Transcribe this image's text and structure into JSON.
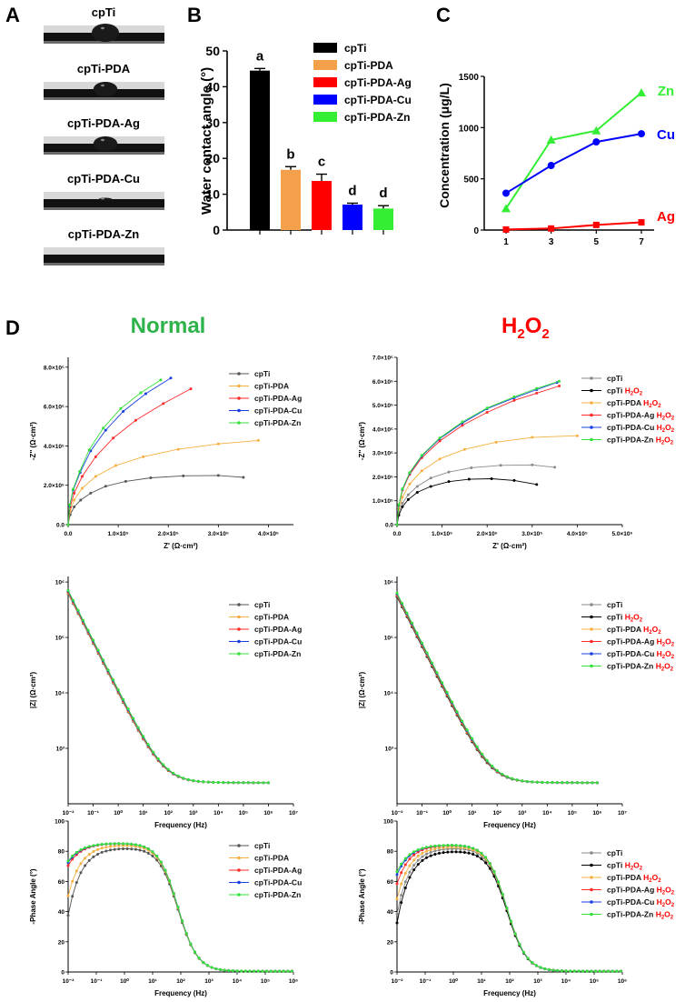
{
  "figure": {
    "panel_labels": [
      "A",
      "B",
      "C",
      "D"
    ],
    "heading_normal": "Normal",
    "heading_h2o2_main": "H",
    "heading_h2o2_sub1": "2",
    "heading_h2o2_mid": "O",
    "heading_h2o2_sub2": "2",
    "h2o2_suffix_main": "H",
    "h2o2_suffix_sub": "2",
    "h2o2_suffix_o": "O",
    "colors": {
      "cpTi": "#000000",
      "cpTi_PDA": "#f5a04a",
      "cpTi_PDA_Ag": "#ff0000",
      "cpTi_PDA_Cu": "#0000ff",
      "cpTi_PDA_Zn": "#33ee33",
      "eis_cpTi": "#555555",
      "eis_cpTi_H2O2": "#000000",
      "eis_PDA": "#f5b041",
      "eis_Ag": "#ff2a2a",
      "eis_Cu": "#1a3fe0",
      "eis_Zn": "#36e13a",
      "h2o2_red": "#ff0000",
      "normal_green": "#2db34a"
    }
  },
  "panelA": {
    "samples": [
      "cpTi",
      "cpTi-PDA",
      "cpTi-PDA-Ag",
      "cpTi-PDA-Cu",
      "cpTi-PDA-Zn"
    ]
  },
  "chart_data": [
    {
      "id": "B",
      "type": "bar",
      "categories": [
        "cpTi",
        "cpTi-PDA",
        "cpTi-PDA-Ag",
        "cpTi-PDA-Cu",
        "cpTi-PDA-Zn"
      ],
      "values": [
        44.5,
        16.8,
        13.7,
        7.1,
        6.0
      ],
      "errors": [
        0.6,
        0.9,
        1.9,
        0.4,
        0.8
      ],
      "letters": [
        "a",
        "b",
        "c",
        "d",
        "d"
      ],
      "ylabel": "Water contact angle (°)",
      "ylim": [
        0,
        50
      ],
      "yticks": [
        "0",
        "10",
        "20",
        "30",
        "40",
        "50"
      ],
      "legend": [
        "cpTi",
        "cpTi-PDA",
        "cpTi-PDA-Ag",
        "cpTi-PDA-Cu",
        "cpTi-PDA-Zn"
      ]
    },
    {
      "id": "C",
      "type": "line",
      "x": [
        1,
        3,
        5,
        7
      ],
      "xticks": [
        "1",
        "3",
        "5",
        "7"
      ],
      "ylabel": "Concentration (μg/L)",
      "ylim": [
        0,
        1500
      ],
      "yticks": [
        "0",
        "500",
        "1000",
        "1500"
      ],
      "series": [
        {
          "name": "Zn",
          "values": [
            210,
            880,
            970,
            1340
          ]
        },
        {
          "name": "Cu",
          "values": [
            360,
            630,
            860,
            940
          ]
        },
        {
          "name": "Ag",
          "values": [
            5,
            15,
            50,
            75
          ]
        }
      ]
    },
    {
      "id": "D-nyquist-normal",
      "type": "line",
      "xlabel": "Z' (Ω·cm²)",
      "ylabel": "-Z'' (Ω·cm²)",
      "xlim": [
        0,
        450000
      ],
      "ylim": [
        0,
        850000
      ],
      "xticks": [
        "0.0",
        "1.0×10⁵",
        "2.0×10⁵",
        "3.0×10⁵",
        "4.0×10⁵"
      ],
      "yticks": [
        "0.0",
        "2.0×10⁵",
        "4.0×10⁵",
        "6.0×10⁵",
        "8.0×10⁵"
      ],
      "legend": [
        "cpTi",
        "cpTi-PDA",
        "cpTi-PDA-Ag",
        "cpTi-PDA-Cu",
        "cpTi-PDA-Zn"
      ],
      "series": [
        {
          "name": "cpTi",
          "values": [
            [
              0,
              0
            ],
            [
              4000,
              50000
            ],
            [
              12000,
              90000
            ],
            [
              25000,
              125000
            ],
            [
              45000,
              160000
            ],
            [
              75000,
              195000
            ],
            [
              115000,
              220000
            ],
            [
              165000,
              238000
            ],
            [
              230000,
              248000
            ],
            [
              300000,
              250000
            ],
            [
              350000,
              240000
            ]
          ]
        },
        {
          "name": "cpTi-PDA",
          "values": [
            [
              0,
              0
            ],
            [
              4000,
              70000
            ],
            [
              12000,
              125000
            ],
            [
              28000,
              185000
            ],
            [
              55000,
              245000
            ],
            [
              95000,
              300000
            ],
            [
              150000,
              345000
            ],
            [
              220000,
              383000
            ],
            [
              300000,
              410000
            ],
            [
              380000,
              428000
            ]
          ]
        },
        {
          "name": "cpTi-PDA-Ag",
          "values": [
            [
              0,
              0
            ],
            [
              4000,
              90000
            ],
            [
              12000,
              160000
            ],
            [
              28000,
              245000
            ],
            [
              55000,
              345000
            ],
            [
              90000,
              440000
            ],
            [
              135000,
              530000
            ],
            [
              190000,
              615000
            ],
            [
              245000,
              690000
            ]
          ]
        },
        {
          "name": "cpTi-PDA-Cu",
          "values": [
            [
              0,
              0
            ],
            [
              3000,
              95000
            ],
            [
              10000,
              175000
            ],
            [
              24000,
              265000
            ],
            [
              45000,
              375000
            ],
            [
              75000,
              480000
            ],
            [
              110000,
              575000
            ],
            [
              155000,
              665000
            ],
            [
              205000,
              745000
            ]
          ]
        },
        {
          "name": "cpTi-PDA-Zn",
          "values": [
            [
              0,
              0
            ],
            [
              3000,
              100000
            ],
            [
              10000,
              180000
            ],
            [
              23000,
              270000
            ],
            [
              42000,
              380000
            ],
            [
              70000,
              490000
            ],
            [
              105000,
              590000
            ],
            [
              145000,
              670000
            ],
            [
              185000,
              735000
            ]
          ]
        }
      ]
    },
    {
      "id": "D-nyquist-h2o2",
      "type": "line",
      "xlabel": "Z' (Ω·cm²)",
      "ylabel": "-Z'' (Ω·cm²)",
      "xlim": [
        0,
        500000
      ],
      "ylim": [
        0,
        700000
      ],
      "xticks": [
        "0.0",
        "1.0×10⁵",
        "2.0×10⁵",
        "3.0×10⁵",
        "4.0×10⁵",
        "5.0×10⁵"
      ],
      "yticks": [
        "0.0",
        "1.0×10⁵",
        "2.0×10⁵",
        "3.0×10⁵",
        "4.0×10⁵",
        "5.0×10⁵",
        "6.0×10⁵",
        "7.0×10⁵"
      ],
      "legend": [
        "cpTi",
        "cpTi H₂O₂",
        "cpTi-PDA H₂O₂",
        "cpTi-PDA-Ag H₂O₂",
        "cpTi-PDA-Cu H₂O₂",
        "cpTi-PDA-Zn H₂O₂"
      ],
      "series": [
        {
          "name": "cpTi",
          "values": [
            [
              0,
              0
            ],
            [
              4000,
              50000
            ],
            [
              12000,
              90000
            ],
            [
              25000,
              125000
            ],
            [
              45000,
              160000
            ],
            [
              75000,
              195000
            ],
            [
              115000,
              220000
            ],
            [
              165000,
              238000
            ],
            [
              230000,
              248000
            ],
            [
              300000,
              250000
            ],
            [
              350000,
              240000
            ]
          ]
        },
        {
          "name": "cpTi H2O2",
          "values": [
            [
              0,
              0
            ],
            [
              4000,
              40000
            ],
            [
              12000,
              75000
            ],
            [
              25000,
              105000
            ],
            [
              45000,
              135000
            ],
            [
              75000,
              160000
            ],
            [
              115000,
              180000
            ],
            [
              160000,
              190000
            ],
            [
              210000,
              192000
            ],
            [
              260000,
              185000
            ],
            [
              310000,
              168000
            ]
          ]
        },
        {
          "name": "cpTi-PDA H2O2",
          "values": [
            [
              0,
              0
            ],
            [
              4000,
              65000
            ],
            [
              12000,
              115000
            ],
            [
              28000,
              170000
            ],
            [
              55000,
              225000
            ],
            [
              95000,
              275000
            ],
            [
              150000,
              315000
            ],
            [
              220000,
              345000
            ],
            [
              300000,
              365000
            ],
            [
              400000,
              372000
            ]
          ]
        },
        {
          "name": "cpTi-PDA-Ag H2O2",
          "values": [
            [
              0,
              0
            ],
            [
              4000,
              80000
            ],
            [
              12000,
              145000
            ],
            [
              28000,
              210000
            ],
            [
              55000,
              280000
            ],
            [
              95000,
              350000
            ],
            [
              145000,
              415000
            ],
            [
              200000,
              470000
            ],
            [
              260000,
              520000
            ],
            [
              310000,
              550000
            ],
            [
              360000,
              580000
            ]
          ]
        },
        {
          "name": "cpTi-PDA-Cu H2O2",
          "values": [
            [
              0,
              0
            ],
            [
              4000,
              82000
            ],
            [
              12000,
              148000
            ],
            [
              28000,
              215000
            ],
            [
              55000,
              287000
            ],
            [
              95000,
              360000
            ],
            [
              145000,
              425000
            ],
            [
              200000,
              485000
            ],
            [
              260000,
              530000
            ],
            [
              310000,
              565000
            ],
            [
              355000,
              595000
            ]
          ]
        },
        {
          "name": "cpTi-PDA-Zn H2O2",
          "values": [
            [
              0,
              0
            ],
            [
              4000,
              83000
            ],
            [
              12000,
              150000
            ],
            [
              28000,
              218000
            ],
            [
              55000,
              290000
            ],
            [
              95000,
              363000
            ],
            [
              145000,
              430000
            ],
            [
              200000,
              488000
            ],
            [
              260000,
              535000
            ],
            [
              310000,
              570000
            ],
            [
              360000,
              600000
            ]
          ]
        }
      ]
    },
    {
      "id": "D-bode-mod-normal",
      "type": "line",
      "xlabel": "Frequency (Hz)",
      "ylabel": "|Z| (Ω·cm²)",
      "xlog": [
        -2,
        7
      ],
      "ylog": [
        2,
        6.1
      ],
      "xticks": [
        "10⁻²",
        "10⁻¹",
        "10⁰",
        "10¹",
        "10²",
        "10³",
        "10⁴",
        "10⁵",
        "10⁶",
        "10⁷"
      ],
      "yticks": [
        "10³",
        "10⁴",
        "10⁵",
        "10⁶"
      ],
      "legend": [
        "cpTi",
        "cpTi-PDA",
        "cpTi-PDA-Ag",
        "cpTi-PDA-Cu",
        "cpTi-PDA-Zn"
      ],
      "model": {
        "log_z_low": 5.85,
        "slope": -0.9,
        "log_z_high": 2.38
      }
    },
    {
      "id": "D-bode-mod-h2o2",
      "type": "line",
      "xlabel": "Frequency (Hz)",
      "ylabel": "|Z| (Ω·cm²)",
      "xlog": [
        -2,
        7
      ],
      "ylog": [
        2,
        6.1
      ],
      "xticks": [
        "10⁻²",
        "10⁻¹",
        "10⁰",
        "10¹",
        "10²",
        "10³",
        "10⁴",
        "10⁵",
        "10⁶",
        "10⁷"
      ],
      "yticks": [
        "10³",
        "10⁴",
        "10⁵",
        "10⁶"
      ],
      "legend": [
        "cpTi",
        "cpTi H₂O₂",
        "cpTi-PDA H₂O₂",
        "cpTi-PDA-Ag H₂O₂",
        "cpTi-PDA-Cu H₂O₂",
        "cpTi-PDA-Zn H₂O₂"
      ],
      "model": {
        "log_z_low": 5.8,
        "slope": -0.9,
        "log_z_high": 2.38
      }
    },
    {
      "id": "D-bode-phase-normal",
      "type": "line",
      "xlabel": "Frequency (Hz)",
      "ylabel": "-Phase Angle (°)",
      "xlog": [
        -2,
        6
      ],
      "ylim": [
        0,
        100
      ],
      "xticks": [
        "10⁻²",
        "10⁻¹",
        "10⁰",
        "10¹",
        "10²",
        "10³",
        "10⁴",
        "10⁵",
        "10⁶"
      ],
      "yticks": [
        "0",
        "20",
        "40",
        "60",
        "80",
        "100"
      ],
      "legend": [
        "cpTi",
        "cpTi-PDA",
        "cpTi-PDA-Ag",
        "cpTi-PDA-Cu",
        "cpTi-PDA-Zn"
      ],
      "series_params": [
        {
          "name": "cpTi",
          "peak": 82,
          "low_phase": 37
        },
        {
          "name": "cpTi-PDA",
          "peak": 84,
          "low_phase": 50
        },
        {
          "name": "cpTi-PDA-Ag",
          "peak": 85,
          "low_phase": 70
        },
        {
          "name": "cpTi-PDA-Cu",
          "peak": 85,
          "low_phase": 72
        },
        {
          "name": "cpTi-PDA-Zn",
          "peak": 85,
          "low_phase": 73
        }
      ]
    },
    {
      "id": "D-bode-phase-h2o2",
      "type": "line",
      "xlabel": "Frequency (Hz)",
      "ylabel": "-Phase Angle (°)",
      "xlog": [
        -2,
        6
      ],
      "ylim": [
        0,
        100
      ],
      "xticks": [
        "10⁻²",
        "10⁻¹",
        "10⁰",
        "10¹",
        "10²",
        "10³",
        "10⁴",
        "10⁵",
        "10⁶"
      ],
      "yticks": [
        "0",
        "20",
        "40",
        "60",
        "80",
        "100"
      ],
      "legend": [
        "cpTi",
        "cpTi H₂O₂",
        "cpTi-PDA H₂O₂",
        "cpTi-PDA-Ag H₂O₂",
        "cpTi-PDA-Cu H₂O₂",
        "cpTi-PDA-Zn H₂O₂"
      ],
      "series_params": [
        {
          "name": "cpTi",
          "peak": 82,
          "low_phase": 38
        },
        {
          "name": "cpTi H2O2",
          "peak": 80,
          "low_phase": 32
        },
        {
          "name": "cpTi-PDA H2O2",
          "peak": 83,
          "low_phase": 48
        },
        {
          "name": "cpTi-PDA-Ag H2O2",
          "peak": 84,
          "low_phase": 58
        },
        {
          "name": "cpTi-PDA-Cu H2O2",
          "peak": 84,
          "low_phase": 64
        },
        {
          "name": "cpTi-PDA-Zn H2O2",
          "peak": 84,
          "low_phase": 66
        }
      ]
    }
  ]
}
